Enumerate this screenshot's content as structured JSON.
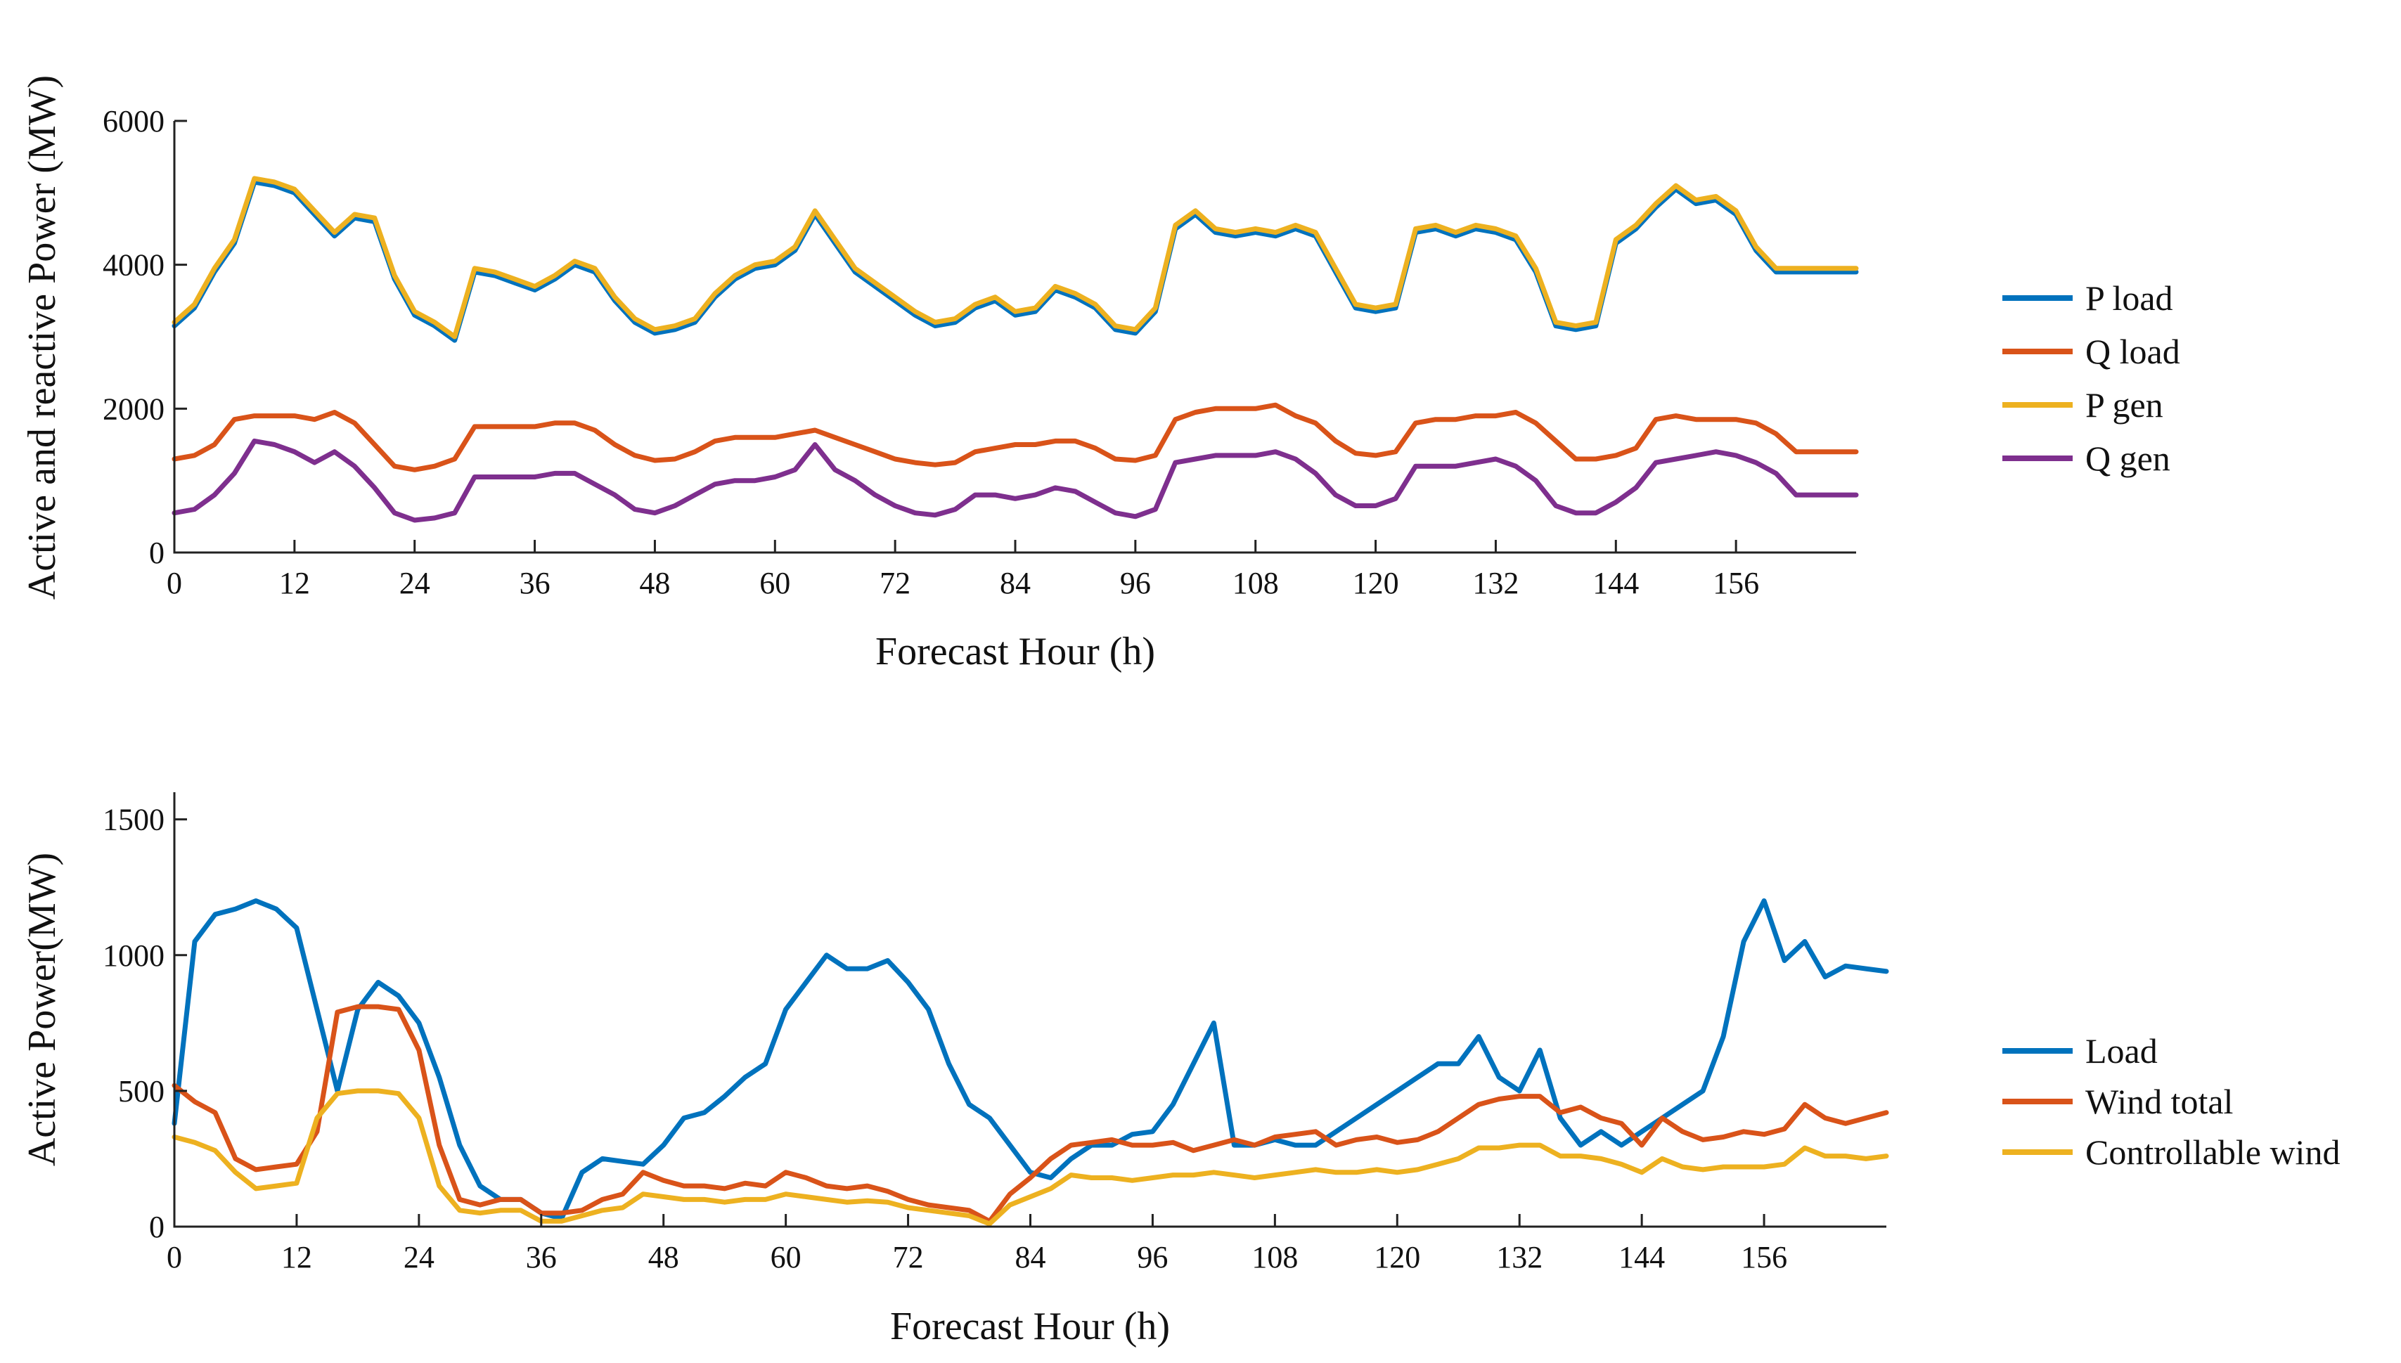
{
  "chart_data": [
    {
      "type": "line",
      "ylabel": "Active and reactive Power (MW)",
      "xlabel": "Forecast Hour (h)",
      "xlim": [
        0,
        168
      ],
      "ylim": [
        0,
        6000
      ],
      "xticks": [
        0,
        12,
        24,
        36,
        48,
        60,
        72,
        84,
        96,
        108,
        120,
        132,
        144,
        156
      ],
      "yticks": [
        0,
        2000,
        4000,
        6000
      ],
      "legend_position": "right",
      "x": [
        0,
        2,
        4,
        6,
        8,
        10,
        12,
        14,
        16,
        18,
        20,
        22,
        24,
        26,
        28,
        30,
        32,
        34,
        36,
        38,
        40,
        42,
        44,
        46,
        48,
        50,
        52,
        54,
        56,
        58,
        60,
        62,
        64,
        66,
        68,
        70,
        72,
        74,
        76,
        78,
        80,
        82,
        84,
        86,
        88,
        90,
        92,
        94,
        96,
        98,
        100,
        102,
        104,
        106,
        108,
        110,
        112,
        114,
        116,
        118,
        120,
        122,
        124,
        126,
        128,
        130,
        132,
        134,
        136,
        138,
        140,
        142,
        144,
        146,
        148,
        150,
        152,
        154,
        156,
        158,
        160,
        162,
        164,
        166,
        168
      ],
      "series": [
        {
          "name": "P load",
          "color": "#0072BD",
          "values": [
            3150,
            3400,
            3900,
            4300,
            5150,
            5100,
            5000,
            4700,
            4400,
            4650,
            4600,
            3800,
            3300,
            3150,
            2950,
            3900,
            3850,
            3750,
            3650,
            3800,
            4000,
            3900,
            3500,
            3200,
            3050,
            3100,
            3200,
            3550,
            3800,
            3950,
            4000,
            4200,
            4700,
            4300,
            3900,
            3700,
            3500,
            3300,
            3150,
            3200,
            3400,
            3500,
            3300,
            3350,
            3650,
            3550,
            3400,
            3100,
            3050,
            3350,
            4500,
            4700,
            4450,
            4400,
            4450,
            4400,
            4500,
            4400,
            3900,
            3400,
            3350,
            3400,
            4450,
            4500,
            4400,
            4500,
            4450,
            4350,
            3900,
            3150,
            3100,
            3150,
            4300,
            4500,
            4800,
            5050,
            4850,
            4900,
            4700,
            4200,
            3900,
            3900,
            3900,
            3900,
            3900
          ]
        },
        {
          "name": "Q load",
          "color": "#D95319",
          "values": [
            1300,
            1350,
            1500,
            1850,
            1900,
            1900,
            1900,
            1850,
            1950,
            1800,
            1500,
            1200,
            1150,
            1200,
            1300,
            1750,
            1750,
            1750,
            1750,
            1800,
            1800,
            1700,
            1500,
            1350,
            1280,
            1300,
            1400,
            1550,
            1600,
            1600,
            1600,
            1650,
            1700,
            1600,
            1500,
            1400,
            1300,
            1250,
            1220,
            1250,
            1400,
            1450,
            1500,
            1500,
            1550,
            1550,
            1450,
            1300,
            1280,
            1350,
            1850,
            1950,
            2000,
            2000,
            2000,
            2050,
            1900,
            1800,
            1550,
            1380,
            1350,
            1400,
            1800,
            1850,
            1850,
            1900,
            1900,
            1950,
            1800,
            1550,
            1300,
            1300,
            1350,
            1450,
            1850,
            1900,
            1850,
            1850,
            1850,
            1800,
            1650,
            1400,
            1400,
            1400,
            1400
          ]
        },
        {
          "name": "P gen",
          "color": "#EDB120",
          "values": [
            3200,
            3450,
            3950,
            4350,
            5200,
            5150,
            5050,
            4750,
            4450,
            4700,
            4650,
            3850,
            3350,
            3200,
            3000,
            3950,
            3900,
            3800,
            3700,
            3850,
            4050,
            3950,
            3550,
            3250,
            3100,
            3150,
            3250,
            3600,
            3850,
            4000,
            4050,
            4250,
            4750,
            4350,
            3950,
            3750,
            3550,
            3350,
            3200,
            3250,
            3450,
            3550,
            3350,
            3400,
            3700,
            3600,
            3450,
            3150,
            3100,
            3400,
            4550,
            4750,
            4500,
            4450,
            4500,
            4450,
            4550,
            4450,
            3950,
            3450,
            3400,
            3450,
            4500,
            4550,
            4450,
            4550,
            4500,
            4400,
            3950,
            3200,
            3150,
            3200,
            4350,
            4550,
            4850,
            5100,
            4900,
            4950,
            4750,
            4250,
            3950,
            3950,
            3950,
            3950,
            3950
          ]
        },
        {
          "name": "Q gen",
          "color": "#7E2F8E",
          "values": [
            550,
            600,
            800,
            1100,
            1550,
            1500,
            1400,
            1250,
            1400,
            1200,
            900,
            550,
            450,
            480,
            550,
            1050,
            1050,
            1050,
            1050,
            1100,
            1100,
            950,
            800,
            600,
            550,
            650,
            800,
            950,
            1000,
            1000,
            1050,
            1150,
            1500,
            1150,
            1000,
            800,
            650,
            550,
            520,
            600,
            800,
            800,
            750,
            800,
            900,
            850,
            700,
            550,
            500,
            600,
            1250,
            1300,
            1350,
            1350,
            1350,
            1400,
            1300,
            1100,
            800,
            650,
            650,
            750,
            1200,
            1200,
            1200,
            1250,
            1300,
            1200,
            1000,
            650,
            550,
            550,
            700,
            900,
            1250,
            1300,
            1350,
            1400,
            1350,
            1250,
            1100,
            800,
            800,
            800,
            800
          ]
        }
      ]
    },
    {
      "type": "line",
      "ylabel": "Active Power(MW)",
      "xlabel": "Forecast Hour (h)",
      "xlim": [
        0,
        168
      ],
      "ylim": [
        0,
        1600
      ],
      "xticks": [
        0,
        12,
        24,
        36,
        48,
        60,
        72,
        84,
        96,
        108,
        120,
        132,
        144,
        156
      ],
      "yticks": [
        0,
        500,
        1000,
        1500
      ],
      "legend_position": "right",
      "x": [
        0,
        2,
        4,
        6,
        8,
        10,
        12,
        14,
        16,
        18,
        20,
        22,
        24,
        26,
        28,
        30,
        32,
        34,
        36,
        38,
        40,
        42,
        44,
        46,
        48,
        50,
        52,
        54,
        56,
        58,
        60,
        62,
        64,
        66,
        68,
        70,
        72,
        74,
        76,
        78,
        80,
        82,
        84,
        86,
        88,
        90,
        92,
        94,
        96,
        98,
        100,
        102,
        104,
        106,
        108,
        110,
        112,
        114,
        116,
        118,
        120,
        122,
        124,
        126,
        128,
        130,
        132,
        134,
        136,
        138,
        140,
        142,
        144,
        146,
        148,
        150,
        152,
        154,
        156,
        158,
        160,
        162,
        164,
        166,
        168
      ],
      "series": [
        {
          "name": "Load",
          "color": "#0072BD",
          "values": [
            380,
            1050,
            1150,
            1170,
            1200,
            1170,
            1100,
            800,
            500,
            800,
            900,
            850,
            750,
            550,
            300,
            150,
            100,
            100,
            50,
            30,
            200,
            250,
            240,
            230,
            300,
            400,
            420,
            480,
            550,
            600,
            800,
            900,
            1000,
            950,
            950,
            980,
            900,
            800,
            600,
            450,
            400,
            300,
            200,
            180,
            250,
            300,
            300,
            340,
            350,
            450,
            600,
            750,
            300,
            300,
            320,
            300,
            300,
            350,
            400,
            450,
            500,
            550,
            600,
            600,
            700,
            550,
            500,
            650,
            400,
            300,
            350,
            300,
            350,
            400,
            450,
            500,
            700,
            1050,
            1200,
            980,
            1050,
            920,
            960,
            950,
            940
          ]
        },
        {
          "name": "Wind total",
          "color": "#D95319",
          "values": [
            520,
            460,
            420,
            250,
            210,
            220,
            230,
            350,
            790,
            810,
            810,
            800,
            650,
            300,
            100,
            80,
            100,
            100,
            50,
            50,
            60,
            100,
            120,
            200,
            170,
            150,
            150,
            140,
            160,
            150,
            200,
            180,
            150,
            140,
            150,
            130,
            100,
            80,
            70,
            60,
            20,
            120,
            180,
            250,
            300,
            310,
            320,
            300,
            300,
            310,
            280,
            300,
            320,
            300,
            330,
            340,
            350,
            300,
            320,
            330,
            310,
            320,
            350,
            400,
            450,
            470,
            480,
            480,
            420,
            440,
            400,
            380,
            300,
            400,
            350,
            320,
            330,
            350,
            340,
            360,
            450,
            400,
            380,
            400,
            420
          ]
        },
        {
          "name": "Controllable wind",
          "color": "#EDB120",
          "values": [
            330,
            310,
            280,
            200,
            140,
            150,
            160,
            400,
            490,
            500,
            500,
            490,
            400,
            150,
            60,
            50,
            60,
            60,
            20,
            20,
            40,
            60,
            70,
            120,
            110,
            100,
            100,
            90,
            100,
            100,
            120,
            110,
            100,
            90,
            95,
            90,
            70,
            60,
            50,
            40,
            10,
            80,
            110,
            140,
            190,
            180,
            180,
            170,
            180,
            190,
            190,
            200,
            190,
            180,
            190,
            200,
            210,
            200,
            200,
            210,
            200,
            210,
            230,
            250,
            290,
            290,
            300,
            300,
            260,
            260,
            250,
            230,
            200,
            250,
            220,
            210,
            220,
            220,
            220,
            230,
            290,
            260,
            260,
            250,
            260
          ]
        }
      ]
    }
  ]
}
